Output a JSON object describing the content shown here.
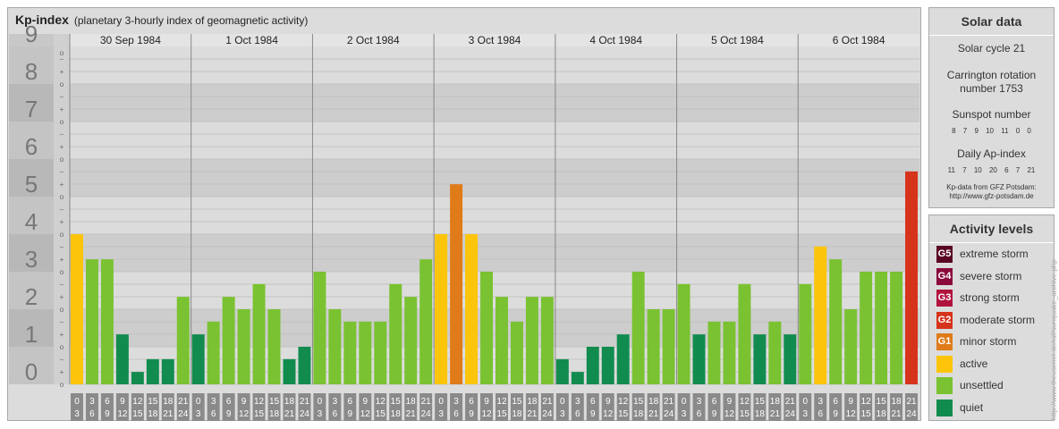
{
  "header": {
    "title": "Kp-index",
    "subtitle": "(planetary 3-hourly index of geomagnetic activity)"
  },
  "chart_data": {
    "type": "bar",
    "ylim": [
      0,
      9
    ],
    "y_major_ticks": [
      "0",
      "1",
      "2",
      "3",
      "4",
      "5",
      "6",
      "7",
      "8",
      "9"
    ],
    "y_minor_ticks": [
      "o",
      "+",
      "−"
    ],
    "days": [
      "30 Sep 1984",
      "1 Oct 1984",
      "2 Oct 1984",
      "3 Oct 1984",
      "4 Oct 1984",
      "5 Oct 1984",
      "6 Oct 1984"
    ],
    "hour_start_labels": [
      "0",
      "3",
      "6",
      "9",
      "12",
      "15",
      "18",
      "21"
    ],
    "hour_end_labels": [
      "3",
      "6",
      "9",
      "12",
      "15",
      "18",
      "21",
      "24"
    ],
    "values": [
      4.0,
      3.33,
      3.33,
      1.33,
      0.33,
      0.67,
      0.67,
      2.33,
      1.33,
      1.67,
      2.33,
      2.0,
      2.67,
      2.0,
      0.67,
      1.0,
      3.0,
      2.0,
      1.67,
      1.67,
      1.67,
      2.67,
      2.33,
      3.33,
      4.0,
      5.33,
      4.0,
      3.0,
      2.33,
      1.67,
      2.33,
      2.33,
      0.67,
      0.33,
      1.0,
      1.0,
      1.33,
      3.0,
      2.0,
      2.0,
      2.67,
      1.33,
      1.67,
      1.67,
      2.67,
      1.33,
      1.67,
      1.33,
      2.67,
      3.67,
      3.33,
      2.0,
      3.0,
      3.0,
      3.0,
      5.67
    ],
    "level_colors": {
      "quiet": "#118c4e",
      "unsettled": "#7ac231",
      "active": "#fcc50b",
      "G1": "#e07b1a",
      "G2": "#d6331b",
      "G3": "#b1133f",
      "G4": "#8a0a3c",
      "G5": "#5a0524"
    }
  },
  "solar": {
    "title": "Solar data",
    "cycle": "Solar cycle 21",
    "carrington_line1": "Carrington rotation",
    "carrington_line2": "number 1753",
    "sunspot_title": "Sunspot number",
    "sunspot_values": "8 7 9 10 11 0 0",
    "ap_title": "Daily Ap-index",
    "ap_values": "11 7 10 20 6 7 21",
    "source_line1": "Kp-data from GFZ Potsdam:",
    "source_line2": "http://www.gfz-potsdam.de"
  },
  "activity": {
    "title": "Activity levels",
    "items": [
      {
        "badge": "G5",
        "label": "extreme storm",
        "color": "#5a0524"
      },
      {
        "badge": "G4",
        "label": "severe storm",
        "color": "#8a0a3c"
      },
      {
        "badge": "G3",
        "label": "strong storm",
        "color": "#b1133f"
      },
      {
        "badge": "G2",
        "label": "moderate storm",
        "color": "#d6331b"
      },
      {
        "badge": "G1",
        "label": "minor storm",
        "color": "#e07b1a"
      },
      {
        "badge": "",
        "label": "active",
        "color": "#fcc50b"
      },
      {
        "badge": "",
        "label": "unsettled",
        "color": "#7ac231"
      },
      {
        "badge": "",
        "label": "quiet",
        "color": "#118c4e"
      }
    ]
  },
  "watermark": "http://www.theusenet.de/raf/sunquake_archive.php"
}
